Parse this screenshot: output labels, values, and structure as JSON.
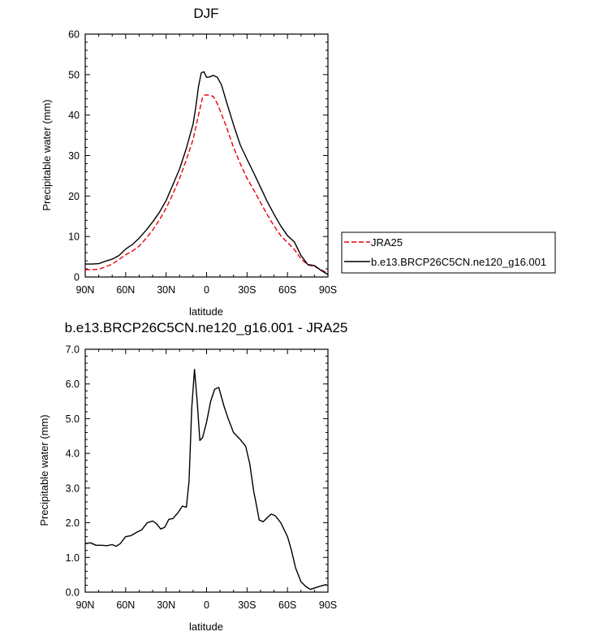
{
  "chart_data": [
    {
      "type": "line",
      "title": "DJF",
      "xlabel": "latitude",
      "ylabel": "Precipitable water (mm)",
      "xlim": [
        90,
        -90
      ],
      "ylim": [
        0,
        60
      ],
      "x_ticks": [
        90,
        60,
        30,
        0,
        -30,
        -60,
        -90
      ],
      "x_tick_labels": [
        "90N",
        "60N",
        "30N",
        "0",
        "30S",
        "60S",
        "90S"
      ],
      "y_ticks": [
        0,
        10,
        20,
        30,
        40,
        50,
        60
      ],
      "y_tick_labels": [
        "0",
        "10",
        "20",
        "30",
        "40",
        "50",
        "60"
      ],
      "legend_position": "right",
      "series": [
        {
          "name": "JRA25",
          "color": "#e8000b",
          "dash": "dashed",
          "points": [
            [
              90,
              1.8
            ],
            [
              85,
              1.8
            ],
            [
              80,
              1.9
            ],
            [
              75,
              2.5
            ],
            [
              70,
              3.2
            ],
            [
              65,
              4.3
            ],
            [
              60,
              5.5
            ],
            [
              55,
              6.4
            ],
            [
              50,
              7.6
            ],
            [
              45,
              9.5
            ],
            [
              40,
              11.6
            ],
            [
              35,
              14.1
            ],
            [
              30,
              17.0
            ],
            [
              25,
              20.5
            ],
            [
              20,
              24.4
            ],
            [
              15,
              29.0
            ],
            [
              10,
              34.0
            ],
            [
              7,
              38.5
            ],
            [
              5,
              41.5
            ],
            [
              3,
              44.3
            ],
            [
              1,
              45.0
            ],
            [
              -2,
              44.9
            ],
            [
              -5,
              44.6
            ],
            [
              -8,
              42.8
            ],
            [
              -11,
              40.3
            ],
            [
              -15,
              36.8
            ],
            [
              -20,
              32.0
            ],
            [
              -25,
              28.0
            ],
            [
              -30,
              24.4
            ],
            [
              -35,
              21.5
            ],
            [
              -40,
              18.4
            ],
            [
              -45,
              15.4
            ],
            [
              -50,
              12.6
            ],
            [
              -55,
              10.2
            ],
            [
              -60,
              8.5
            ],
            [
              -65,
              6.8
            ],
            [
              -70,
              4.5
            ],
            [
              -75,
              3.0
            ],
            [
              -80,
              2.6
            ],
            [
              -85,
              1.8
            ],
            [
              -90,
              0.8
            ]
          ]
        },
        {
          "name": "b.e13.BRCP26C5CN.ne120_g16.001",
          "color": "#000000",
          "dash": "solid",
          "points": [
            [
              90,
              3.2
            ],
            [
              85,
              3.2
            ],
            [
              80,
              3.3
            ],
            [
              75,
              3.9
            ],
            [
              70,
              4.4
            ],
            [
              65,
              5.3
            ],
            [
              60,
              6.9
            ],
            [
              55,
              8.0
            ],
            [
              50,
              9.6
            ],
            [
              45,
              11.5
            ],
            [
              40,
              13.6
            ],
            [
              35,
              16.0
            ],
            [
              30,
              18.9
            ],
            [
              25,
              22.8
            ],
            [
              20,
              26.7
            ],
            [
              15,
              31.8
            ],
            [
              10,
              37.8
            ],
            [
              8,
              42.0
            ],
            [
              6,
              47.0
            ],
            [
              4,
              50.4
            ],
            [
              2,
              50.7
            ],
            [
              0,
              49.3
            ],
            [
              -2,
              49.4
            ],
            [
              -5,
              49.8
            ],
            [
              -8,
              49.3
            ],
            [
              -11,
              47.5
            ],
            [
              -15,
              43.0
            ],
            [
              -20,
              37.6
            ],
            [
              -25,
              32.6
            ],
            [
              -30,
              29.1
            ],
            [
              -35,
              25.7
            ],
            [
              -40,
              22.2
            ],
            [
              -45,
              18.6
            ],
            [
              -50,
              15.5
            ],
            [
              -55,
              12.6
            ],
            [
              -60,
              10.2
            ],
            [
              -65,
              8.7
            ],
            [
              -70,
              5.3
            ],
            [
              -75,
              3.1
            ],
            [
              -80,
              2.8
            ],
            [
              -85,
              1.6
            ],
            [
              -90,
              0.6
            ]
          ]
        }
      ]
    },
    {
      "type": "line",
      "title": "b.e13.BRCP26C5CN.ne120_g16.001 - JRA25",
      "xlabel": "latitude",
      "ylabel": "Precipitable water (mm)",
      "xlim": [
        90,
        -90
      ],
      "ylim": [
        0,
        7
      ],
      "x_ticks": [
        90,
        60,
        30,
        0,
        -30,
        -60,
        -90
      ],
      "x_tick_labels": [
        "90N",
        "60N",
        "30N",
        "0",
        "30S",
        "60S",
        "90S"
      ],
      "y_ticks": [
        0,
        1,
        2,
        3,
        4,
        5,
        6,
        7
      ],
      "y_tick_labels": [
        "0.0",
        "1.0",
        "2.0",
        "3.0",
        "4.0",
        "5.0",
        "6.0",
        "7.0"
      ],
      "series": [
        {
          "color": "#000000",
          "dash": "solid",
          "points": [
            [
              90,
              1.4
            ],
            [
              86,
              1.42
            ],
            [
              82,
              1.35
            ],
            [
              78,
              1.35
            ],
            [
              74,
              1.34
            ],
            [
              70,
              1.37
            ],
            [
              67,
              1.32
            ],
            [
              64,
              1.4
            ],
            [
              60,
              1.6
            ],
            [
              56,
              1.63
            ],
            [
              52,
              1.72
            ],
            [
              48,
              1.8
            ],
            [
              44,
              2.0
            ],
            [
              40,
              2.05
            ],
            [
              37,
              1.97
            ],
            [
              34,
              1.82
            ],
            [
              31,
              1.87
            ],
            [
              28,
              2.1
            ],
            [
              25,
              2.12
            ],
            [
              21,
              2.3
            ],
            [
              18,
              2.48
            ],
            [
              15,
              2.45
            ],
            [
              13,
              3.2
            ],
            [
              11,
              5.3
            ],
            [
              9,
              6.42
            ],
            [
              7,
              5.5
            ],
            [
              5,
              4.37
            ],
            [
              3,
              4.45
            ],
            [
              0,
              4.9
            ],
            [
              -3,
              5.5
            ],
            [
              -6,
              5.85
            ],
            [
              -9,
              5.9
            ],
            [
              -13,
              5.35
            ],
            [
              -16,
              5.0
            ],
            [
              -20,
              4.6
            ],
            [
              -25,
              4.4
            ],
            [
              -29,
              4.2
            ],
            [
              -32,
              3.7
            ],
            [
              -35,
              2.9
            ],
            [
              -37,
              2.5
            ],
            [
              -39,
              2.08
            ],
            [
              -42,
              2.03
            ],
            [
              -45,
              2.15
            ],
            [
              -48,
              2.25
            ],
            [
              -51,
              2.2
            ],
            [
              -55,
              2.0
            ],
            [
              -60,
              1.6
            ],
            [
              -63,
              1.2
            ],
            [
              -66,
              0.7
            ],
            [
              -70,
              0.3
            ],
            [
              -74,
              0.15
            ],
            [
              -77,
              0.08
            ],
            [
              -80,
              0.12
            ],
            [
              -85,
              0.18
            ],
            [
              -89,
              0.22
            ]
          ]
        }
      ]
    }
  ]
}
